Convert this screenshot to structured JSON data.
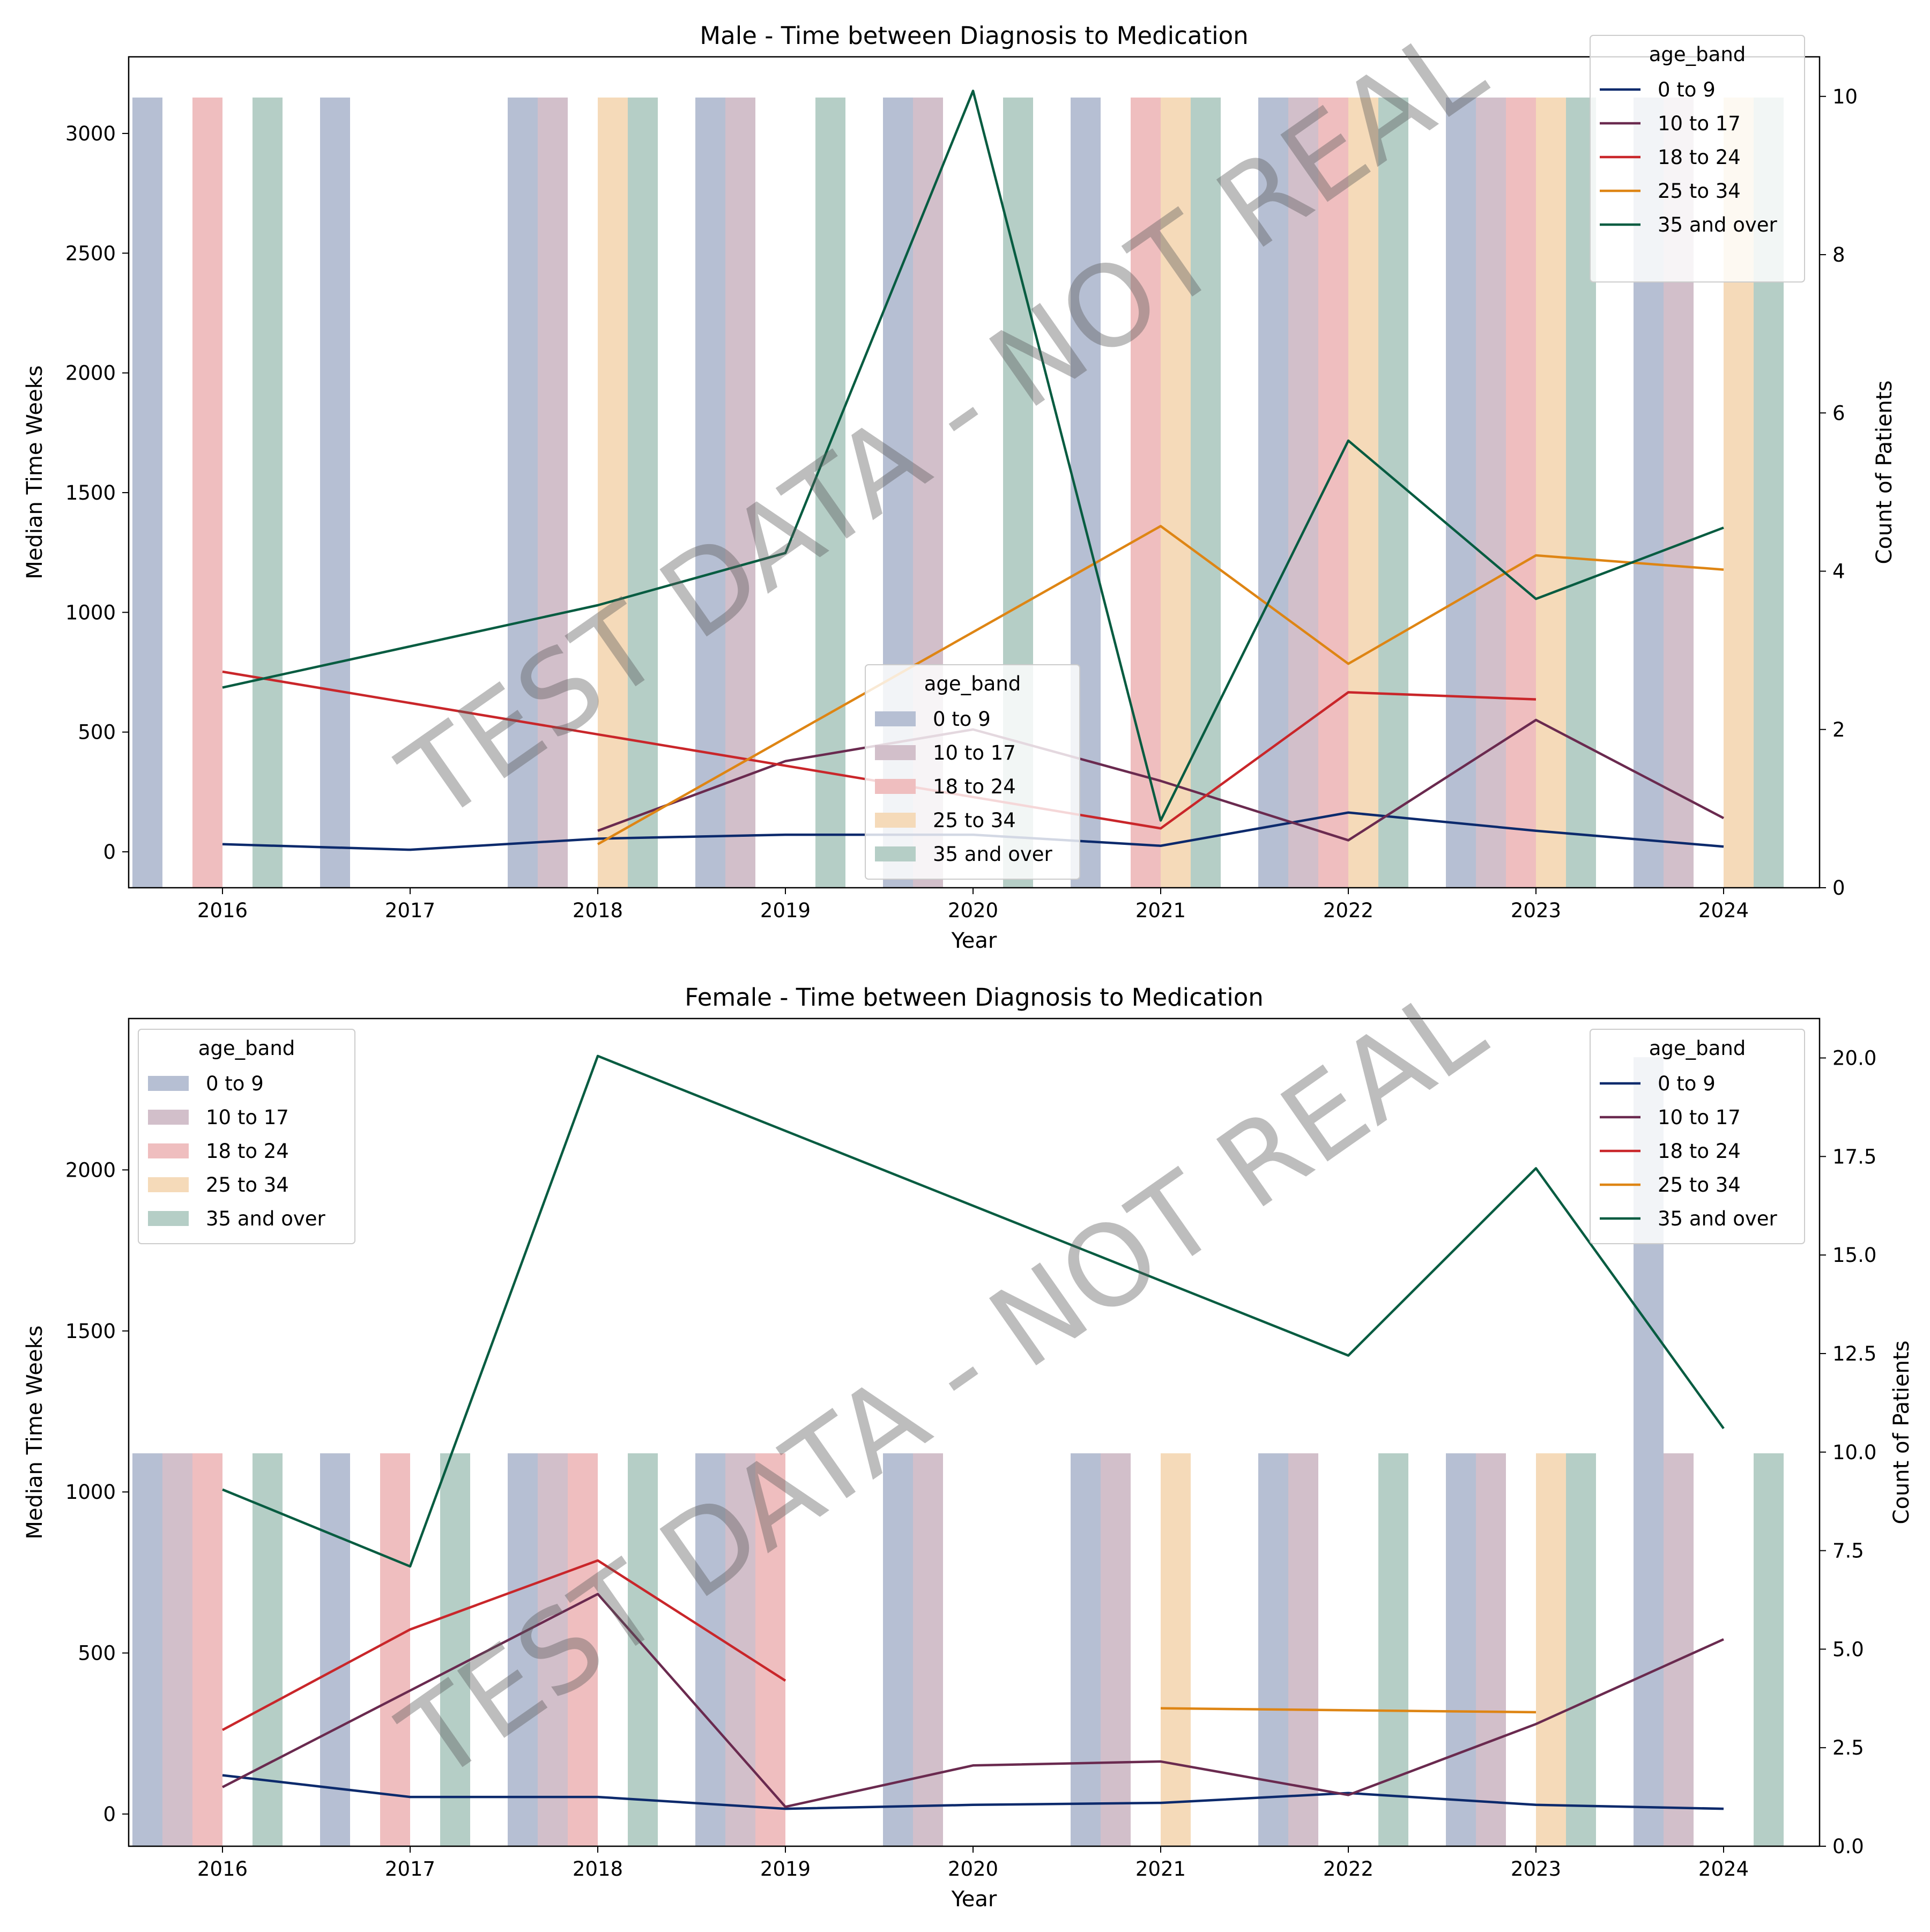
{
  "watermark": "TEST DATA - NOT REAL",
  "colors": {
    "0 to 9": "#0c2a6c",
    "10 to 17": "#6a2a4f",
    "18 to 24": "#c9262a",
    "25 to 34": "#de8514",
    "35 and over": "#075c41"
  },
  "chart_data": [
    {
      "type": "bar+line",
      "title": "Male - Time between Diagnosis to Medication",
      "xlabel": "Year",
      "ylabel": "Median Time Weeks",
      "ylabel_right": "Count of Patients",
      "categories": [
        "2016",
        "2017",
        "2018",
        "2019",
        "2020",
        "2021",
        "2022",
        "2023",
        "2024"
      ],
      "ylim": [
        -150,
        3320
      ],
      "yticks": [
        0,
        500,
        1000,
        1500,
        2000,
        2500,
        3000
      ],
      "y2lim": [
        0,
        10.5
      ],
      "y2ticks": [
        0,
        2,
        4,
        6,
        8,
        10
      ],
      "bar_legend": {
        "title": "age_band",
        "position": "bottom-center",
        "entries": [
          "0 to 9",
          "10 to 17",
          "18 to 24",
          "25 to 34",
          "35 and over"
        ]
      },
      "line_legend": {
        "title": "age_band",
        "position": "top-right",
        "entries": [
          "0 to 9",
          "10 to 17",
          "18 to 24",
          "25 to 34",
          "35 and over"
        ]
      },
      "bar_series": [
        {
          "name": "0 to 9",
          "values": [
            3150,
            3150,
            3150,
            3150,
            3150,
            3150,
            3150,
            3150,
            3150
          ]
        },
        {
          "name": "10 to 17",
          "values": [
            null,
            null,
            3150,
            3150,
            3150,
            null,
            3150,
            3150,
            3150
          ]
        },
        {
          "name": "18 to 24",
          "values": [
            3150,
            null,
            null,
            null,
            null,
            3150,
            3150,
            3150,
            null
          ]
        },
        {
          "name": "25 to 34",
          "values": [
            null,
            null,
            3150,
            null,
            null,
            3150,
            3150,
            3150,
            3150
          ]
        },
        {
          "name": "35 and over",
          "values": [
            3150,
            null,
            3150,
            3150,
            3150,
            3150,
            3150,
            3150,
            3150
          ]
        }
      ],
      "line_series": [
        {
          "name": "0 to 9",
          "values": [
            0.55,
            0.48,
            0.62,
            0.67,
            0.67,
            0.53,
            0.95,
            0.72,
            0.52
          ]
        },
        {
          "name": "10 to 17",
          "values": [
            null,
            null,
            0.72,
            1.6,
            2.0,
            1.35,
            0.6,
            2.12,
            0.88
          ]
        },
        {
          "name": "18 to 24",
          "values": [
            2.73,
            null,
            null,
            null,
            null,
            0.75,
            2.47,
            2.38,
            null
          ]
        },
        {
          "name": "25 to 34",
          "values": [
            null,
            null,
            0.55,
            null,
            null,
            4.57,
            2.83,
            4.2,
            4.02
          ]
        },
        {
          "name": "35 and over",
          "values": [
            2.53,
            null,
            3.57,
            4.23,
            10.07,
            0.85,
            5.65,
            3.65,
            4.55
          ]
        }
      ]
    },
    {
      "type": "bar+line",
      "title": "Female - Time between Diagnosis to Medication",
      "xlabel": "Year",
      "ylabel": "Median Time Weeks",
      "ylabel_right": "Count of Patients",
      "categories": [
        "2016",
        "2017",
        "2018",
        "2019",
        "2020",
        "2021",
        "2022",
        "2023",
        "2024"
      ],
      "ylim": [
        -100,
        2470
      ],
      "yticks": [
        0,
        500,
        1000,
        1500,
        2000
      ],
      "y2lim": [
        0,
        21
      ],
      "y2ticks": [
        "0.0",
        "2.5",
        "5.0",
        "7.5",
        "10.0",
        "12.5",
        "15.0",
        "17.5",
        "20.0"
      ],
      "bar_legend": {
        "title": "age_band",
        "position": "top-left",
        "entries": [
          "0 to 9",
          "10 to 17",
          "18 to 24",
          "25 to 34",
          "35 and over"
        ]
      },
      "line_legend": {
        "title": "age_band",
        "position": "top-right",
        "entries": [
          "0 to 9",
          "10 to 17",
          "18 to 24",
          "25 to 34",
          "35 and over"
        ]
      },
      "bar_series": [
        {
          "name": "0 to 9",
          "values": [
            1120,
            1120,
            1120,
            1120,
            1120,
            1120,
            1120,
            1120,
            2350
          ]
        },
        {
          "name": "10 to 17",
          "values": [
            1120,
            null,
            1120,
            1120,
            1120,
            1120,
            1120,
            1120,
            1120
          ]
        },
        {
          "name": "18 to 24",
          "values": [
            1120,
            1120,
            1120,
            1120,
            null,
            null,
            null,
            null,
            null
          ]
        },
        {
          "name": "25 to 34",
          "values": [
            null,
            null,
            null,
            null,
            null,
            1120,
            null,
            1120,
            null
          ]
        },
        {
          "name": "35 and over",
          "values": [
            1120,
            1120,
            1120,
            null,
            null,
            null,
            1120,
            1120,
            1120
          ]
        }
      ],
      "line_series": [
        {
          "name": "0 to 9",
          "values": [
            1.8,
            1.25,
            1.25,
            0.95,
            1.05,
            1.1,
            1.35,
            1.05,
            0.95
          ]
        },
        {
          "name": "10 to 17",
          "values": [
            1.5,
            null,
            6.4,
            1.0,
            2.05,
            2.15,
            1.3,
            3.1,
            5.25
          ]
        },
        {
          "name": "18 to 24",
          "values": [
            2.95,
            5.5,
            7.25,
            4.2,
            null,
            null,
            null,
            null,
            null
          ]
        },
        {
          "name": "25 to 34",
          "values": [
            null,
            null,
            null,
            null,
            null,
            3.5,
            null,
            3.4,
            null
          ]
        },
        {
          "name": "35 and over",
          "values": [
            9.05,
            7.1,
            20.05,
            null,
            null,
            null,
            12.45,
            17.2,
            10.6
          ]
        }
      ]
    }
  ]
}
